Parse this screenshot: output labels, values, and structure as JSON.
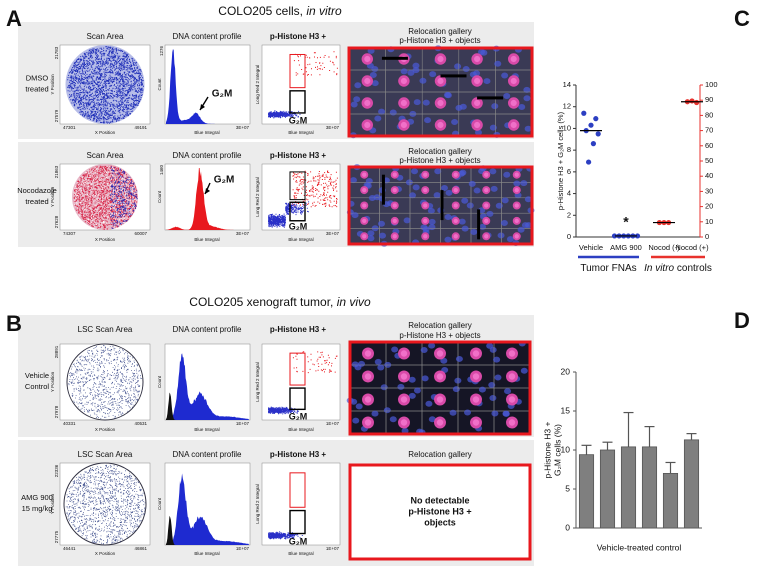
{
  "panels": [
    {
      "letter": "A",
      "title_parts": [
        "COLO205 cells, ",
        "in vitro"
      ],
      "rows": [
        {
          "label_lines": [
            "DMSO",
            "treated"
          ],
          "scan": {
            "title": "Scan Area",
            "y_ticks": [
              "21783",
              "27579"
            ],
            "x_ticks": [
              "47301",
              "49191"
            ],
            "x_label": "X Position",
            "y_label": "Y Position"
          },
          "dna": {
            "title": "DNA content profile",
            "y_tick": "1276",
            "x_tick": "3E+07",
            "x_label": "Blue Integral",
            "y_label": "Count",
            "marker": "G₂M"
          },
          "scatter": {
            "title": "p-Histone H3 +",
            "x_tick": "3E+07",
            "x_label": "Blue Integral",
            "y_label": "Long Red 2 Integral",
            "marker": "G₂M"
          },
          "gallery": {
            "title_lines": [
              "Relocation gallery",
              "p-Histone H3 + objects"
            ]
          }
        },
        {
          "label_lines": [
            "Nocodazole",
            "treated"
          ],
          "scan": {
            "title": "Scan Area",
            "y_ticks": [
              "21863",
              "27628"
            ],
            "x_ticks": [
              "74307",
              "60007"
            ],
            "x_label": "X Position",
            "y_label": "Y Position"
          },
          "dna": {
            "title": "DNA content profile",
            "y_tick": "1460",
            "x_tick": "3E+07",
            "x_label": "Blue Integral",
            "y_label": "Count",
            "marker": "G₂M"
          },
          "scatter": {
            "title": "p-Histone H3 +",
            "x_tick": "3E+07",
            "x_label": "Blue Integral",
            "y_label": "Long Red 2 Integral",
            "marker": "G₂M"
          },
          "gallery": {
            "title_lines": [
              "Relocation gallery",
              "p-Histone H3 + objects"
            ]
          }
        }
      ]
    },
    {
      "letter": "B",
      "title_parts": [
        "COLO205 xenograft tumor, ",
        "in vivo"
      ],
      "rows": [
        {
          "label_lines": [
            "Vehicle",
            "Control"
          ],
          "scan": {
            "title": "LSC Scan Area",
            "y_ticks": [
              "28891",
              "27978"
            ],
            "x_ticks": [
              "40331",
              "40531"
            ],
            "x_label": "X Position",
            "y_label": "Y Position"
          },
          "dna": {
            "title": "DNA content profile",
            "x_tick": "1E+07",
            "x_label": "Blue Integral",
            "y_label": "Count"
          },
          "scatter": {
            "title": "p-Histone H3 +",
            "x_tick": "1E+07",
            "x_label": "Blue Integral",
            "y_label": "Long Red 2 Integral",
            "marker": "G₂M"
          },
          "gallery": {
            "title_lines": [
              "Relocation gallery",
              "p-Histone H3 + objects"
            ]
          }
        },
        {
          "label_lines": [
            "AMG 900",
            "15 mg/kg"
          ],
          "scan": {
            "title": "LSC Scan Area",
            "y_ticks": [
              "22336",
              "27775"
            ],
            "x_ticks": [
              "46441",
              "46861"
            ],
            "x_label": "X Position",
            "y_label": "Y Position"
          },
          "dna": {
            "title": "DNA content profile",
            "x_tick": "1E+07",
            "x_label": "Blue Integral",
            "y_label": "Count"
          },
          "scatter": {
            "title": "p-Histone H3 +",
            "x_tick": "1E+07",
            "x_label": "Blue Integral",
            "y_label": "Long Red 2 Integral",
            "marker": "G₂M"
          },
          "gallery": {
            "title_lines": [
              "Relocation gallery"
            ],
            "message_lines": [
              "No detectable",
              "p-Histone H3 +",
              "objects"
            ]
          }
        }
      ]
    }
  ],
  "chart_data": [
    {
      "type": "dot",
      "letter": "C",
      "categories": [
        "Vehicle",
        "AMG 900",
        "Nocod (-)",
        "Nocod (+)"
      ],
      "series": [
        {
          "color": "#2c3fc2",
          "values": [
            [
              11.4,
              10.9,
              10.3,
              9.8,
              9.5,
              8.6,
              6.9
            ],
            [
              0.1,
              0.1,
              0.1,
              0.1,
              0.1,
              0.1
            ],
            null,
            null
          ],
          "medians": [
            9.8,
            0.1,
            null,
            null
          ]
        },
        {
          "color": "#e8322d",
          "axis": "y2",
          "values": [
            null,
            null,
            [
              9.5,
              9.5,
              9.5
            ],
            [
              89,
              89.5,
              88.5
            ]
          ],
          "medians": [
            null,
            null,
            9.5,
            89
          ]
        }
      ],
      "ylabel": "p-Histone H3 + G₂M cells (%)",
      "ylim": [
        0,
        14
      ],
      "yticks": [
        0,
        2,
        4,
        6,
        8,
        10,
        12,
        14
      ],
      "y2lim": [
        0,
        100
      ],
      "y2ticks": [
        0,
        10,
        20,
        30,
        40,
        50,
        60,
        70,
        80,
        90,
        100
      ],
      "y2color": "#e8322d",
      "annotations": [
        {
          "text": "*",
          "category": 1
        }
      ],
      "groups": [
        {
          "label_parts": [
            "Tumor FNAs"
          ],
          "color": "#2c3fc2",
          "categories": [
            0,
            1
          ]
        },
        {
          "label_parts": [
            "In vitro",
            " controls"
          ],
          "color": "#e8322d",
          "categories": [
            2,
            3
          ]
        }
      ]
    },
    {
      "type": "bar",
      "letter": "D",
      "categories": [
        null,
        null,
        null,
        null,
        null,
        null
      ],
      "values": [
        9.4,
        10.0,
        10.4,
        10.4,
        7.0,
        11.3
      ],
      "errors": [
        1.2,
        1.0,
        4.4,
        2.6,
        1.4,
        0.8
      ],
      "color": "#7f7f7f",
      "ylabel_lines": [
        "p-Histone H3 +",
        "G₂M cells (%)"
      ],
      "xlabel": "Vehicle-treated control",
      "ylim": [
        0,
        20
      ],
      "yticks": [
        0,
        5,
        10,
        15,
        20
      ]
    }
  ]
}
